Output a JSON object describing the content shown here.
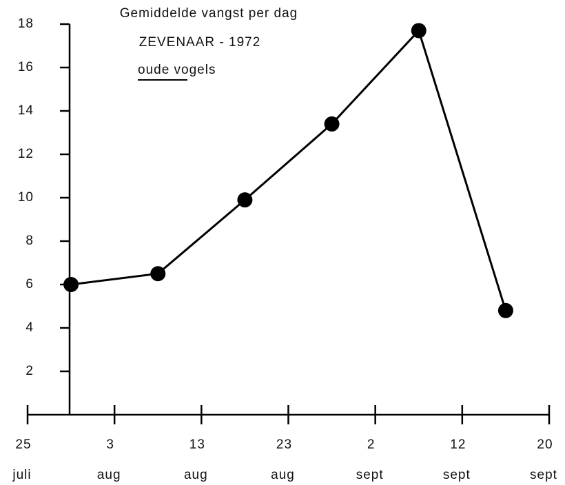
{
  "chart_data": {
    "type": "line",
    "title": "Gemiddelde vangst per dag",
    "subtitle": "ZEVENAAR - 1972",
    "subtitle2": "oude vogels",
    "x": [
      0.5,
      1.5,
      2.5,
      3.5,
      4.5,
      5.5
    ],
    "values": [
      6.0,
      6.5,
      9.9,
      13.4,
      17.7,
      4.8
    ],
    "color": "#000000",
    "xlim": [
      0,
      6
    ],
    "xticks": [
      {
        "value": 0,
        "label": [
          "25",
          "juli"
        ]
      },
      {
        "value": 1,
        "label": [
          "3",
          "aug"
        ]
      },
      {
        "value": 2,
        "label": [
          "13",
          "aug"
        ]
      },
      {
        "value": 3,
        "label": [
          "23",
          "aug"
        ]
      },
      {
        "value": 4,
        "label": [
          "2",
          "sept"
        ]
      },
      {
        "value": 5,
        "label": [
          "12",
          "sept"
        ]
      },
      {
        "value": 6,
        "label": [
          "20",
          "sept"
        ]
      }
    ],
    "ylim": [
      0,
      18
    ],
    "yticks": [
      2,
      4,
      6,
      8,
      10,
      12,
      14,
      16,
      18
    ],
    "grid": false
  }
}
